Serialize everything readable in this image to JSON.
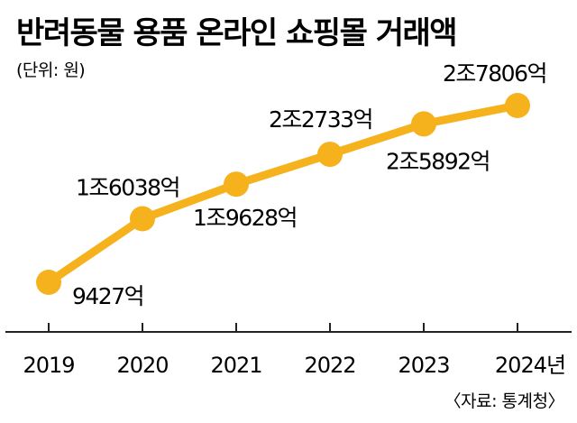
{
  "title": "반려동물 용품 온라인 쇼핑몰 거래액",
  "unit": "(단위: 원)",
  "source": "〈자료: 통계청〉",
  "colors": {
    "line": "#f5b21d",
    "marker": "#f5b21d",
    "axis": "#222222",
    "text": "#1a1a1a"
  },
  "chart_data": {
    "type": "line",
    "title": "반려동물 용품 온라인 쇼핑몰 거래액",
    "ylabel": "(단위: 원)",
    "xlabel": "",
    "categories": [
      "2019",
      "2020",
      "2021",
      "2022",
      "2023",
      "2024"
    ],
    "tick_labels": [
      "2019",
      "2020",
      "2021",
      "2022",
      "2023",
      "2024년"
    ],
    "values": [
      9427,
      16038,
      19628,
      22733,
      25892,
      27806
    ],
    "value_unit": "억원",
    "data_labels": [
      "9427억",
      "1조6038억",
      "1조9628억",
      "2조2733억",
      "2조5892억",
      "2조7806억"
    ],
    "ylim": [
      0,
      30000
    ],
    "grid": false,
    "legend": "none"
  }
}
